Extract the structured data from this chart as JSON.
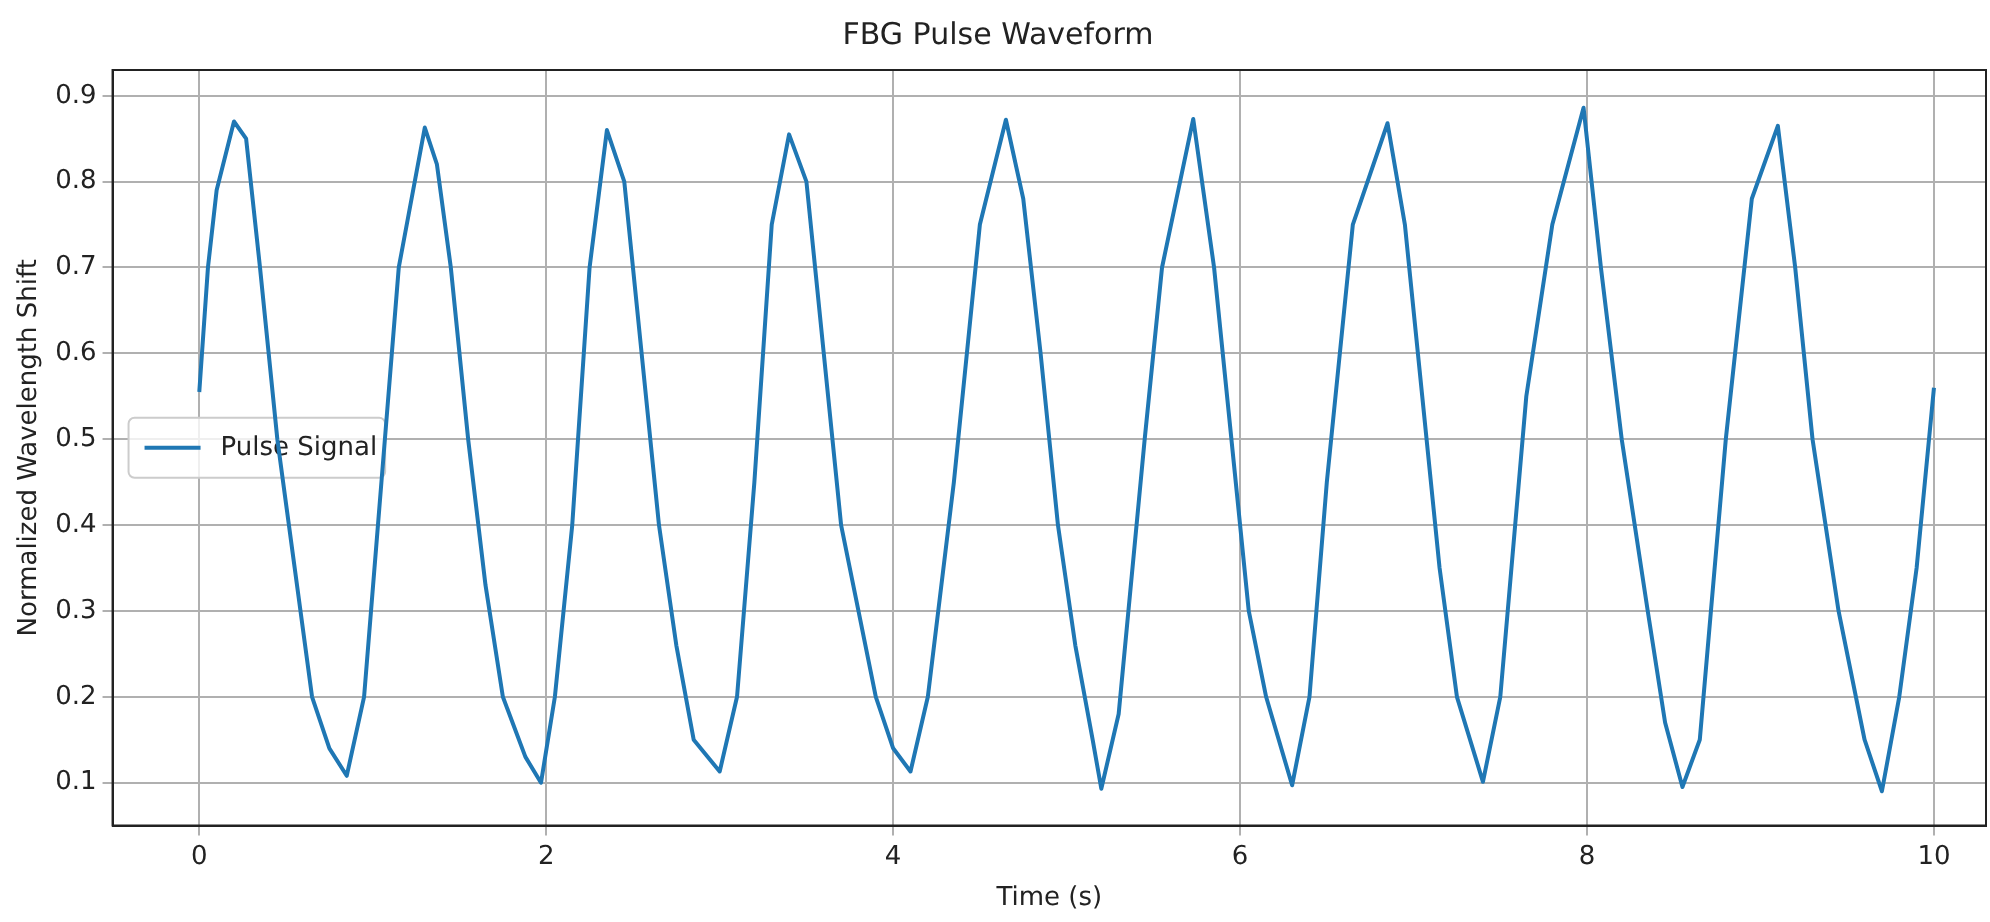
{
  "chart_data": {
    "type": "line",
    "title": "FBG Pulse Waveform",
    "xlabel": "Time (s)",
    "ylabel": "Normalized Wavelength Shift",
    "xlim": [
      -0.5,
      10.3
    ],
    "xticks": [
      0,
      2,
      4,
      6,
      8,
      10
    ],
    "ylim": [
      0.05,
      0.93
    ],
    "yticks": [
      0.1,
      0.2,
      0.3,
      0.4,
      0.5,
      0.6,
      0.7,
      0.8,
      0.9
    ],
    "grid": true,
    "legend": "center left",
    "marker": "none",
    "line_style": "solid",
    "series": [
      {
        "name": "Pulse Signal",
        "color": "#1f77b4",
        "x": [
          0,
          0.05,
          0.1,
          0.2,
          0.27,
          0.35,
          0.45,
          0.55,
          0.65,
          0.75,
          0.85,
          0.95,
          1.05,
          1.15,
          1.3,
          1.37,
          1.45,
          1.55,
          1.65,
          1.75,
          1.88,
          1.97,
          2.05,
          2.15,
          2.25,
          2.35,
          2.45,
          2.55,
          2.65,
          2.75,
          2.85,
          3.0,
          3.1,
          3.2,
          3.3,
          3.4,
          3.5,
          3.6,
          3.7,
          3.8,
          3.9,
          4.0,
          4.1,
          4.2,
          4.35,
          4.5,
          4.65,
          4.75,
          4.85,
          4.95,
          5.05,
          5.15,
          5.2,
          5.3,
          5.45,
          5.55,
          5.73,
          5.85,
          5.95,
          6.05,
          6.15,
          6.3,
          6.4,
          6.5,
          6.65,
          6.85,
          6.95,
          7.05,
          7.15,
          7.25,
          7.4,
          7.5,
          7.65,
          7.8,
          7.98,
          8.08,
          8.2,
          8.35,
          8.45,
          8.55,
          8.65,
          8.8,
          8.95,
          9.1,
          9.2,
          9.3,
          9.45,
          9.6,
          9.7,
          9.8,
          9.9,
          10
        ],
        "values": [
          0.555,
          0.7,
          0.79,
          0.87,
          0.85,
          0.7,
          0.5,
          0.35,
          0.2,
          0.14,
          0.108,
          0.2,
          0.45,
          0.7,
          0.863,
          0.82,
          0.7,
          0.5,
          0.33,
          0.2,
          0.13,
          0.1,
          0.2,
          0.4,
          0.7,
          0.86,
          0.8,
          0.6,
          0.4,
          0.26,
          0.15,
          0.113,
          0.2,
          0.45,
          0.75,
          0.855,
          0.8,
          0.6,
          0.4,
          0.3,
          0.2,
          0.14,
          0.113,
          0.2,
          0.45,
          0.75,
          0.872,
          0.78,
          0.6,
          0.4,
          0.26,
          0.15,
          0.093,
          0.18,
          0.5,
          0.7,
          0.873,
          0.7,
          0.5,
          0.3,
          0.2,
          0.097,
          0.2,
          0.45,
          0.75,
          0.868,
          0.75,
          0.55,
          0.35,
          0.2,
          0.101,
          0.2,
          0.55,
          0.75,
          0.886,
          0.7,
          0.5,
          0.3,
          0.17,
          0.095,
          0.15,
          0.5,
          0.78,
          0.865,
          0.7,
          0.5,
          0.3,
          0.15,
          0.09,
          0.2,
          0.35,
          0.56
        ]
      }
    ]
  }
}
